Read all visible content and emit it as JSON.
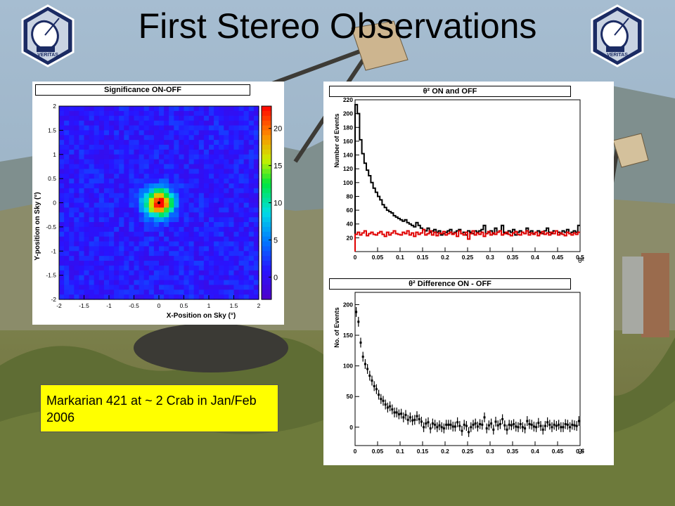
{
  "slide": {
    "title": "First Stereo Observations",
    "caption": "Markarian 421 at ~ 2 Crab in Jan/Feb 2006",
    "logo_text": "VERITAS",
    "colors": {
      "caption_bg": "#ffff00",
      "title_text": "#000000",
      "on_series": "#000000",
      "off_series": "#e00000"
    }
  },
  "chart_data": [
    {
      "type": "heatmap",
      "title": "Significance ON-OFF",
      "xlabel": "X-Position on Sky (°)",
      "ylabel": "Y-position on Sky (°)",
      "xlim": [
        -2,
        2
      ],
      "ylim": [
        -2,
        2
      ],
      "x_ticks": [
        "-2",
        "-1.5",
        "-1",
        "-0.5",
        "0",
        "0.5",
        "1",
        "1.5",
        "2"
      ],
      "y_ticks": [
        "2",
        "1.5",
        "1",
        "0.5",
        "0",
        "-0.5",
        "-1",
        "-1.5",
        "-2"
      ],
      "colorbar_ticks": [
        "20",
        "15",
        "10",
        "5",
        "0"
      ],
      "zlim": [
        -3,
        23
      ],
      "peak": {
        "x": 0,
        "y": 0,
        "value": 23
      },
      "background_level": 1
    },
    {
      "type": "line",
      "title": "θ² ON and OFF",
      "ylabel": "Number of Events",
      "xlabel": "θ²",
      "xlim": [
        0,
        0.5
      ],
      "ylim": [
        0,
        220
      ],
      "x_ticks": [
        "0",
        "0.05",
        "0.1",
        "0.15",
        "0.2",
        "0.25",
        "0.3",
        "0.35",
        "0.4",
        "0.45",
        "0.5"
      ],
      "y_ticks": [
        "220",
        "200",
        "180",
        "160",
        "140",
        "120",
        "100",
        "80",
        "60",
        "40",
        "20"
      ],
      "bin_width": 0.005,
      "series": [
        {
          "color": "#000000",
          "values": [
            213,
            200,
            162,
            142,
            128,
            118,
            110,
            100,
            92,
            86,
            80,
            75,
            68,
            64,
            60,
            58,
            56,
            52,
            50,
            48,
            46,
            44,
            46,
            42,
            40,
            38,
            36,
            42,
            38,
            34,
            32,
            30,
            34,
            28,
            30,
            32,
            28,
            30,
            24,
            26,
            28,
            30,
            32,
            26,
            28,
            30,
            32,
            26,
            28,
            24,
            30,
            28,
            26,
            30,
            28,
            30,
            32,
            38,
            26,
            28,
            30,
            26,
            34,
            28,
            30,
            38,
            28,
            26,
            30,
            28,
            32,
            24,
            28,
            30,
            28,
            26,
            34,
            28,
            30,
            26,
            28,
            30,
            28,
            26,
            30,
            34,
            28,
            26,
            30,
            30,
            28,
            26,
            30,
            28,
            32,
            26,
            28,
            30,
            28,
            38
          ]
        },
        {
          "color": "#e00000",
          "values": [
            25,
            28,
            24,
            27,
            30,
            23,
            26,
            28,
            25,
            24,
            27,
            29,
            25,
            22,
            28,
            24,
            27,
            30,
            26,
            25,
            24,
            28,
            26,
            30,
            24,
            27,
            22,
            28,
            25,
            27,
            32,
            24,
            26,
            30,
            24,
            28,
            23,
            27,
            26,
            29,
            24,
            26,
            28,
            25,
            27,
            22,
            30,
            26,
            24,
            28,
            18,
            26,
            30,
            24,
            27,
            25,
            28,
            22,
            26,
            29,
            24,
            27,
            25,
            28,
            30,
            24,
            26,
            28,
            25,
            23,
            27,
            29,
            25,
            24,
            28,
            26,
            30,
            24,
            27,
            25,
            28,
            23,
            26,
            29,
            25,
            27,
            24,
            28,
            26,
            30,
            24,
            27,
            25,
            23,
            28,
            26,
            24,
            27,
            25,
            28
          ]
        }
      ]
    },
    {
      "type": "scatter",
      "title": "θ² Difference ON - OFF",
      "ylabel": "No. of Events",
      "xlabel": "θ²",
      "xlim": [
        0,
        0.5
      ],
      "ylim": [
        -30,
        220
      ],
      "x_ticks": [
        "0",
        "0.05",
        "0.1",
        "0.15",
        "0.2",
        "0.25",
        "0.3",
        "0.35",
        "0.4",
        "0.45",
        "0.5"
      ],
      "y_ticks": [
        "200",
        "150",
        "100",
        "50",
        "0"
      ],
      "bin_width": 0.005,
      "values": [
        188,
        172,
        138,
        115,
        103,
        95,
        84,
        76,
        67,
        62,
        53,
        46,
        43,
        37,
        32,
        34,
        29,
        24,
        24,
        21,
        22,
        16,
        20,
        12,
        16,
        11,
        12,
        18,
        13,
        9,
        0,
        6,
        8,
        -2,
        6,
        4,
        0,
        3,
        0,
        -2,
        4,
        4,
        4,
        1,
        1,
        8,
        2,
        -6,
        4,
        2,
        -8,
        0,
        4,
        6,
        1,
        5,
        4,
        16,
        -2,
        3,
        6,
        -4,
        9,
        3,
        5,
        13,
        3,
        -4,
        4,
        3,
        5,
        1,
        0,
        5,
        0,
        -2,
        10,
        5,
        4,
        1,
        0,
        7,
        2,
        -4,
        2,
        8,
        4,
        0,
        4,
        2,
        4,
        0,
        0,
        5,
        4,
        0,
        4,
        3,
        2,
        10
      ]
    }
  ]
}
